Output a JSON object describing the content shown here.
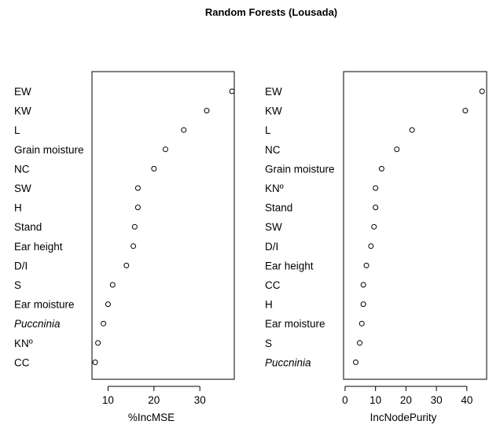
{
  "title": "Random Forests (Lousada)",
  "chart_data": [
    {
      "type": "scatter",
      "xlabel": "%IncMSE",
      "xlim": [
        6.5,
        37.5
      ],
      "xticks": [
        10,
        20,
        30
      ],
      "points": [
        {
          "label": "EW",
          "value": 37.0,
          "italic": false
        },
        {
          "label": "KW",
          "value": 31.5,
          "italic": false
        },
        {
          "label": "L",
          "value": 26.5,
          "italic": false
        },
        {
          "label": "Grain moisture",
          "value": 22.5,
          "italic": false
        },
        {
          "label": "NC",
          "value": 20.0,
          "italic": false
        },
        {
          "label": "SW",
          "value": 16.5,
          "italic": false
        },
        {
          "label": "H",
          "value": 16.5,
          "italic": false
        },
        {
          "label": "Stand",
          "value": 15.8,
          "italic": false
        },
        {
          "label": "Ear height",
          "value": 15.5,
          "italic": false
        },
        {
          "label": "D/I",
          "value": 14.0,
          "italic": false
        },
        {
          "label": "S",
          "value": 11.0,
          "italic": false
        },
        {
          "label": "Ear moisture",
          "value": 10.0,
          "italic": false
        },
        {
          "label": "Puccninia",
          "value": 9.0,
          "italic": true
        },
        {
          "label": "KNº",
          "value": 7.8,
          "italic": false
        },
        {
          "label": "CC",
          "value": 7.2,
          "italic": false
        }
      ]
    },
    {
      "type": "scatter",
      "xlabel": "IncNodePurity",
      "xlim": [
        -0.5,
        46.5
      ],
      "xticks": [
        0,
        10,
        20,
        30,
        40
      ],
      "points": [
        {
          "label": "EW",
          "value": 45.0,
          "italic": false
        },
        {
          "label": "KW",
          "value": 39.5,
          "italic": false
        },
        {
          "label": "L",
          "value": 22.0,
          "italic": false
        },
        {
          "label": "NC",
          "value": 17.0,
          "italic": false
        },
        {
          "label": "Grain moisture",
          "value": 12.0,
          "italic": false
        },
        {
          "label": "KNº",
          "value": 10.0,
          "italic": false
        },
        {
          "label": "Stand",
          "value": 10.0,
          "italic": false
        },
        {
          "label": "SW",
          "value": 9.5,
          "italic": false
        },
        {
          "label": "D/I",
          "value": 8.5,
          "italic": false
        },
        {
          "label": "Ear height",
          "value": 7.0,
          "italic": false
        },
        {
          "label": "CC",
          "value": 6.0,
          "italic": false
        },
        {
          "label": "H",
          "value": 6.0,
          "italic": false
        },
        {
          "label": "Ear moisture",
          "value": 5.5,
          "italic": false
        },
        {
          "label": "S",
          "value": 4.8,
          "italic": false
        },
        {
          "label": "Puccninia",
          "value": 3.5,
          "italic": true
        }
      ]
    }
  ]
}
